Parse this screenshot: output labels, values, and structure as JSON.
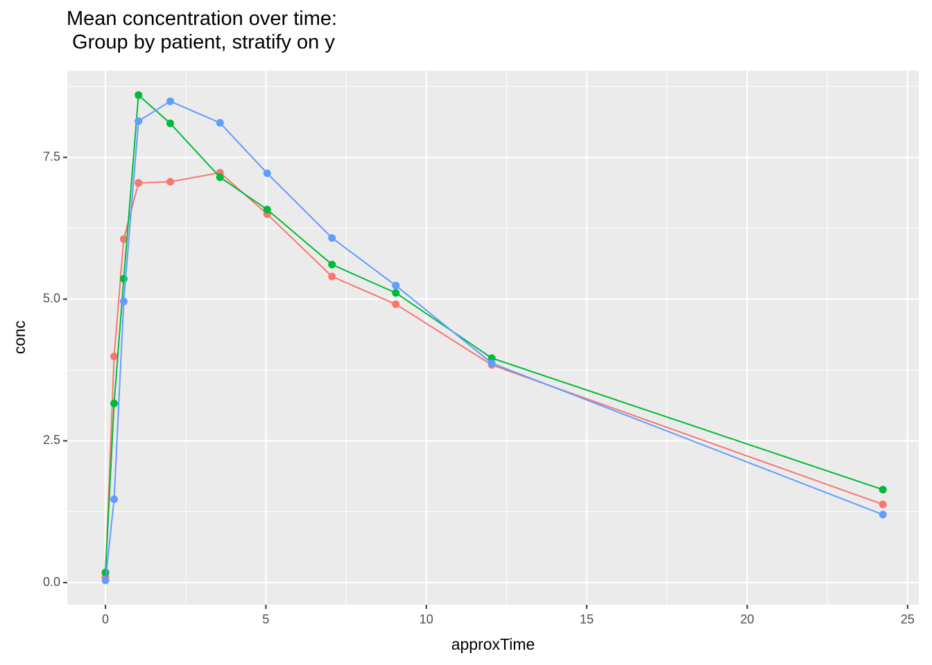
{
  "chart_data": {
    "type": "line",
    "title": "Mean concentration over time:\n Group by patient, stratify on y",
    "x_label": "approxTime",
    "y_label": "conc",
    "x": [
      0,
      0.27,
      0.57,
      1.03,
      2.02,
      3.57,
      5.04,
      7.06,
      9.05,
      12.04,
      24.23
    ],
    "series": [
      {
        "color": "#F8766D",
        "values": [
          0.1,
          3.99,
          6.06,
          7.05,
          7.07,
          7.23,
          6.5,
          5.4,
          4.91,
          3.84,
          1.38
        ]
      },
      {
        "color": "#00BA38",
        "values": [
          0.18,
          3.16,
          5.36,
          8.6,
          8.1,
          7.15,
          6.58,
          5.61,
          5.11,
          3.96,
          1.64
        ]
      },
      {
        "color": "#619CFF",
        "values": [
          0.04,
          1.47,
          4.96,
          8.14,
          8.49,
          8.11,
          7.22,
          6.08,
          5.24,
          3.87,
          1.2
        ]
      }
    ],
    "xlim": [
      -1.19,
      25.35
    ],
    "ylim": [
      -0.39,
      9.03
    ],
    "xticks": [
      0,
      5,
      10,
      15,
      20,
      25
    ],
    "yticks": [
      {
        "value": 0,
        "label": "0.0"
      },
      2.5,
      {
        "value": 5,
        "label": "5.0"
      },
      7.5
    ],
    "grid": true
  }
}
